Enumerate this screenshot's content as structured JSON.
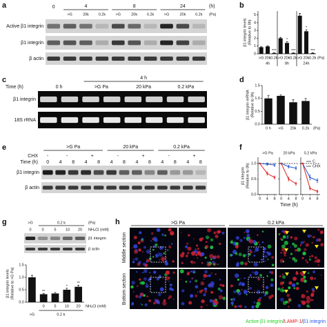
{
  "panel_a": {
    "letter": "a",
    "time_zero": "0",
    "time_groups": [
      "4",
      "8",
      "24"
    ],
    "time_unit": "(h)",
    "conditions": [
      ">G",
      "20k",
      "0.2k",
      ">G",
      "20k",
      "0.2k",
      ">G",
      "20k",
      "0.2k"
    ],
    "pressure_unit": "(Pa)",
    "rows": [
      "Active β1 integrin",
      "β1 integrin",
      "β actin"
    ]
  },
  "panel_c": {
    "letter": "c",
    "time_label": "Time (h)",
    "header": "4 h",
    "columns": [
      "0 h",
      ">G Pa",
      "20 kPa",
      "0.2 kPa"
    ],
    "rows": [
      "β1 integrin",
      "18S  rRNA"
    ]
  },
  "panel_e": {
    "letter": "e",
    "header": [
      ">G Pa",
      "20 kPa",
      "0.2 kPa"
    ],
    "chx_label": "CHX",
    "chx": [
      "-",
      "-",
      "+",
      "-",
      "+",
      "-",
      "+"
    ],
    "time_label": "Time (h)",
    "times": [
      "0",
      "4",
      "8",
      "4",
      "8",
      "4",
      "8",
      "4",
      "8",
      "4",
      "8",
      "4",
      "8"
    ],
    "rows": [
      "β1 integrin",
      "β actin"
    ]
  },
  "panel_g_blot": {
    "letter": "g",
    "groups": [
      ">G",
      "0.2 k"
    ],
    "pressure_unit": "(Pa)",
    "nh4cl_label": "NH₄Cl (mM)",
    "nh4cl": [
      "0",
      "0",
      "5",
      "10",
      "20"
    ],
    "rows": [
      "β1 integrin",
      "β actin"
    ]
  },
  "panel_h": {
    "letter": "h",
    "columns": [
      ">G Pa",
      "0.2 kPa"
    ],
    "rows": [
      "Middle section",
      "Bottom section"
    ],
    "legend": [
      {
        "text": "Active β1 integrin",
        "color": "#1fcf1f"
      },
      {
        "text": "/",
        "color": "#222222"
      },
      {
        "text": "LAMP-1",
        "color": "#e02020"
      },
      {
        "text": "/",
        "color": "#222222"
      },
      {
        "text": "β1 integrin",
        "color": "#2255ee"
      }
    ]
  },
  "chart_data": [
    {
      "type": "bar",
      "letter": "b",
      "ylabel": [
        "β1 integrin levels",
        "(Relative to 0h)"
      ],
      "categories": [
        ">G",
        "20k",
        "0.2k",
        ">G",
        "20k",
        "0.2k",
        ">G",
        "20k",
        "0.2k"
      ],
      "groups": [
        "4h",
        "8h",
        "24h"
      ],
      "unit": "(Pa)",
      "values": [
        0.85,
        0.95,
        0.1,
        2.0,
        1.4,
        0.1,
        4.9,
        2.9,
        0.1
      ],
      "errors": [
        0.06,
        0.08,
        0.03,
        0.12,
        0.15,
        0.03,
        0.3,
        0.2,
        0.05
      ],
      "significance": [
        null,
        null,
        "***",
        null,
        "*",
        "***",
        null,
        "*",
        "***"
      ],
      "color": "#111111",
      "ylim": [
        0,
        5.5
      ],
      "yticks": [
        0,
        1,
        2,
        3,
        4,
        5
      ]
    },
    {
      "type": "bar",
      "letter": "d",
      "ylabel": [
        "β1 integrin mRNA",
        "(Relative to 0h)"
      ],
      "categories": [
        "0 h",
        ">G",
        "20k",
        "0.2k"
      ],
      "unit": "(Pa)",
      "values": [
        1.0,
        1.1,
        0.85,
        0.9
      ],
      "errors": [
        0.12,
        0.04,
        0.1,
        0.1
      ],
      "color": "#111111",
      "ylim": [
        0,
        1.5
      ],
      "yticks": [
        {
          "value": 0,
          "label": "0.0"
        },
        {
          "value": 0.5,
          "label": "0.5"
        },
        {
          "value": 1,
          "label": "1.0"
        },
        {
          "value": 1.5,
          "label": "1.5"
        }
      ]
    },
    {
      "type": "line",
      "letter": "f",
      "ylabel": [
        "β1 integrin",
        "(Relative to 0h)"
      ],
      "xlabel": "Time (h)",
      "x": [
        0,
        4,
        8
      ],
      "xlim": [
        -1,
        9.5
      ],
      "xticks": [
        0,
        4,
        8
      ],
      "ylim": [
        0,
        1.2
      ],
      "yticks": [
        {
          "value": 0,
          "label": "0.0"
        },
        {
          "value": 0.5,
          "label": "0.5"
        },
        {
          "value": 1,
          "label": "1.0"
        }
      ],
      "reference_line": 1,
      "legend": "upper right",
      "series": [
        {
          "name": "C",
          "color": "#2255cc"
        },
        {
          "name": "CHX",
          "color": "#dd2222"
        }
      ],
      "panels": [
        {
          "title": ">G Pa",
          "values": [
            [
              1,
              0.98,
              0.95
            ],
            [
              1,
              0.68,
              0.55
            ]
          ],
          "errors": [
            [
              0,
              0.04,
              0.05
            ],
            [
              0,
              0.05,
              0.05
            ]
          ]
        },
        {
          "title": "20 kPa",
          "values": [
            [
              1,
              0.9,
              0.85
            ],
            [
              1,
              0.5,
              0.35
            ]
          ],
          "errors": [
            [
              0,
              0.05,
              0.05
            ],
            [
              0,
              0.06,
              0.05
            ]
          ]
        },
        {
          "title": "0.2 kPa",
          "values": [
            [
              1,
              0.55,
              0.45
            ],
            [
              1,
              0.2,
              0.1
            ]
          ],
          "errors": [
            [
              0,
              0.08,
              0.06
            ],
            [
              0,
              0.05,
              0.04
            ]
          ]
        }
      ]
    },
    {
      "type": "bar",
      "ylabel": [
        "β1 integrin levels",
        "(Relative to >G Pa)"
      ],
      "categories": [
        null,
        "0",
        "5",
        "10",
        "20"
      ],
      "xlabel": "NH₄Cl (mM)",
      "groups": [
        ">G",
        "0.2 k"
      ],
      "values": [
        1.0,
        0.32,
        0.35,
        0.5,
        0.62
      ],
      "errors": [
        0.08,
        0.03,
        0.04,
        0.06,
        0.06
      ],
      "significance": [
        null,
        "**",
        null,
        "*",
        "**"
      ],
      "color": "#111111",
      "ylim": [
        0,
        1.5
      ],
      "yticks": [
        {
          "value": 0,
          "label": "0.0"
        },
        {
          "value": 0.5,
          "label": "0.5"
        },
        {
          "value": 1,
          "label": "1.0"
        },
        {
          "value": 1.5,
          "label": "1.5"
        }
      ]
    }
  ]
}
